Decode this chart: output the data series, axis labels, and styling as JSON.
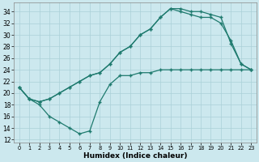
{
  "xlabel": "Humidex (Indice chaleur)",
  "background_color": "#cce8ee",
  "grid_color": "#aad0d8",
  "line_color": "#1e7a6e",
  "line_width": 0.9,
  "yticks": [
    12,
    14,
    16,
    18,
    20,
    22,
    24,
    26,
    28,
    30,
    32,
    34
  ],
  "xticks": [
    0,
    1,
    2,
    3,
    4,
    5,
    6,
    7,
    8,
    9,
    10,
    11,
    12,
    13,
    14,
    15,
    16,
    17,
    18,
    19,
    20,
    21,
    22,
    23
  ],
  "xlim": [
    -0.5,
    23.5
  ],
  "ylim": [
    11.5,
    35.5
  ],
  "curveA_x": [
    0,
    1,
    2,
    3,
    4,
    5,
    6,
    7,
    8,
    9,
    10,
    11,
    12,
    13,
    14,
    15,
    16,
    17,
    18,
    19,
    20,
    21,
    22,
    23
  ],
  "curveA_y": [
    21,
    19,
    18.5,
    19,
    20,
    21,
    22,
    23,
    23.5,
    25,
    27,
    28,
    30,
    31,
    33,
    34.5,
    34.5,
    34,
    34,
    33.5,
    33,
    28.5,
    25,
    24
  ],
  "curveB_x": [
    0,
    1,
    2,
    3,
    4,
    5,
    6,
    7,
    8,
    9,
    10,
    11,
    12,
    13,
    14,
    15,
    16,
    17,
    18,
    19,
    20,
    21,
    22,
    23
  ],
  "curveB_y": [
    21,
    19,
    18.5,
    19,
    20,
    21,
    22,
    23,
    23.5,
    25,
    27,
    28,
    30,
    31,
    33,
    34.5,
    34,
    33.5,
    33,
    33,
    32,
    29,
    25,
    24
  ],
  "curveC_x": [
    0,
    1,
    2,
    3,
    4,
    5,
    6,
    7,
    8,
    9,
    10,
    11,
    12,
    13,
    14,
    15,
    16,
    17,
    18,
    19,
    20,
    21,
    22,
    23
  ],
  "curveC_y": [
    21,
    19,
    18,
    16,
    15,
    14,
    13,
    13.5,
    18.5,
    21.5,
    23,
    23,
    23.5,
    23.5,
    24,
    24,
    24,
    24,
    24,
    24,
    24,
    24,
    24,
    24
  ]
}
